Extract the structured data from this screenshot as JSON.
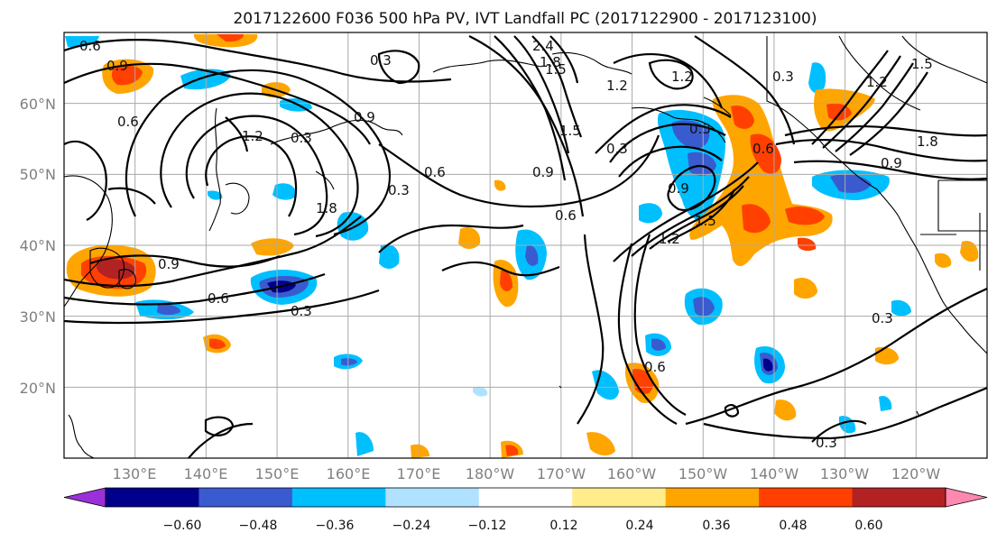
{
  "title": "2017122600 F036 500 hPa PV, IVT Landfall PC (2017122900 - 2017123100)",
  "map": {
    "lat_labels": [
      {
        "lat": 60,
        "text": "60°N"
      },
      {
        "lat": 50,
        "text": "50°N"
      },
      {
        "lat": 40,
        "text": "40°N"
      },
      {
        "lat": 30,
        "text": "30°N"
      },
      {
        "lat": 20,
        "text": "20°N"
      }
    ],
    "lon_labels": [
      {
        "lon": 130,
        "text": "130°E"
      },
      {
        "lon": 140,
        "text": "140°E"
      },
      {
        "lon": 150,
        "text": "150°E"
      },
      {
        "lon": 160,
        "text": "160°E"
      },
      {
        "lon": 170,
        "text": "170°E"
      },
      {
        "lon": 180,
        "text": "180°W"
      },
      {
        "lon": 190,
        "text": "170°W"
      },
      {
        "lon": 200,
        "text": "160°W"
      },
      {
        "lon": 210,
        "text": "150°W"
      },
      {
        "lon": 220,
        "text": "140°W"
      },
      {
        "lon": 230,
        "text": "130°W"
      },
      {
        "lon": 240,
        "text": "120°W"
      }
    ],
    "extent": {
      "lon_min": 120,
      "lon_max": 250,
      "lat_min": 10,
      "lat_max": 70
    },
    "contour_labels": [
      "0.3",
      "0.6",
      "0.9",
      "1.2",
      "1.5",
      "1.8",
      "2.4"
    ]
  },
  "colorbar": {
    "ticks": [
      "−0.60",
      "−0.48",
      "−0.36",
      "−0.24",
      "−0.12",
      "0.12",
      "0.24",
      "0.36",
      "0.48",
      "0.60"
    ],
    "colors": [
      "#9b30d9",
      "#00008b",
      "#3a5bcf",
      "#00bfff",
      "#b0e2ff",
      "#ffffff",
      "#ffec8b",
      "#ffa500",
      "#ff4000",
      "#b22222",
      "#ff88b0"
    ]
  }
}
